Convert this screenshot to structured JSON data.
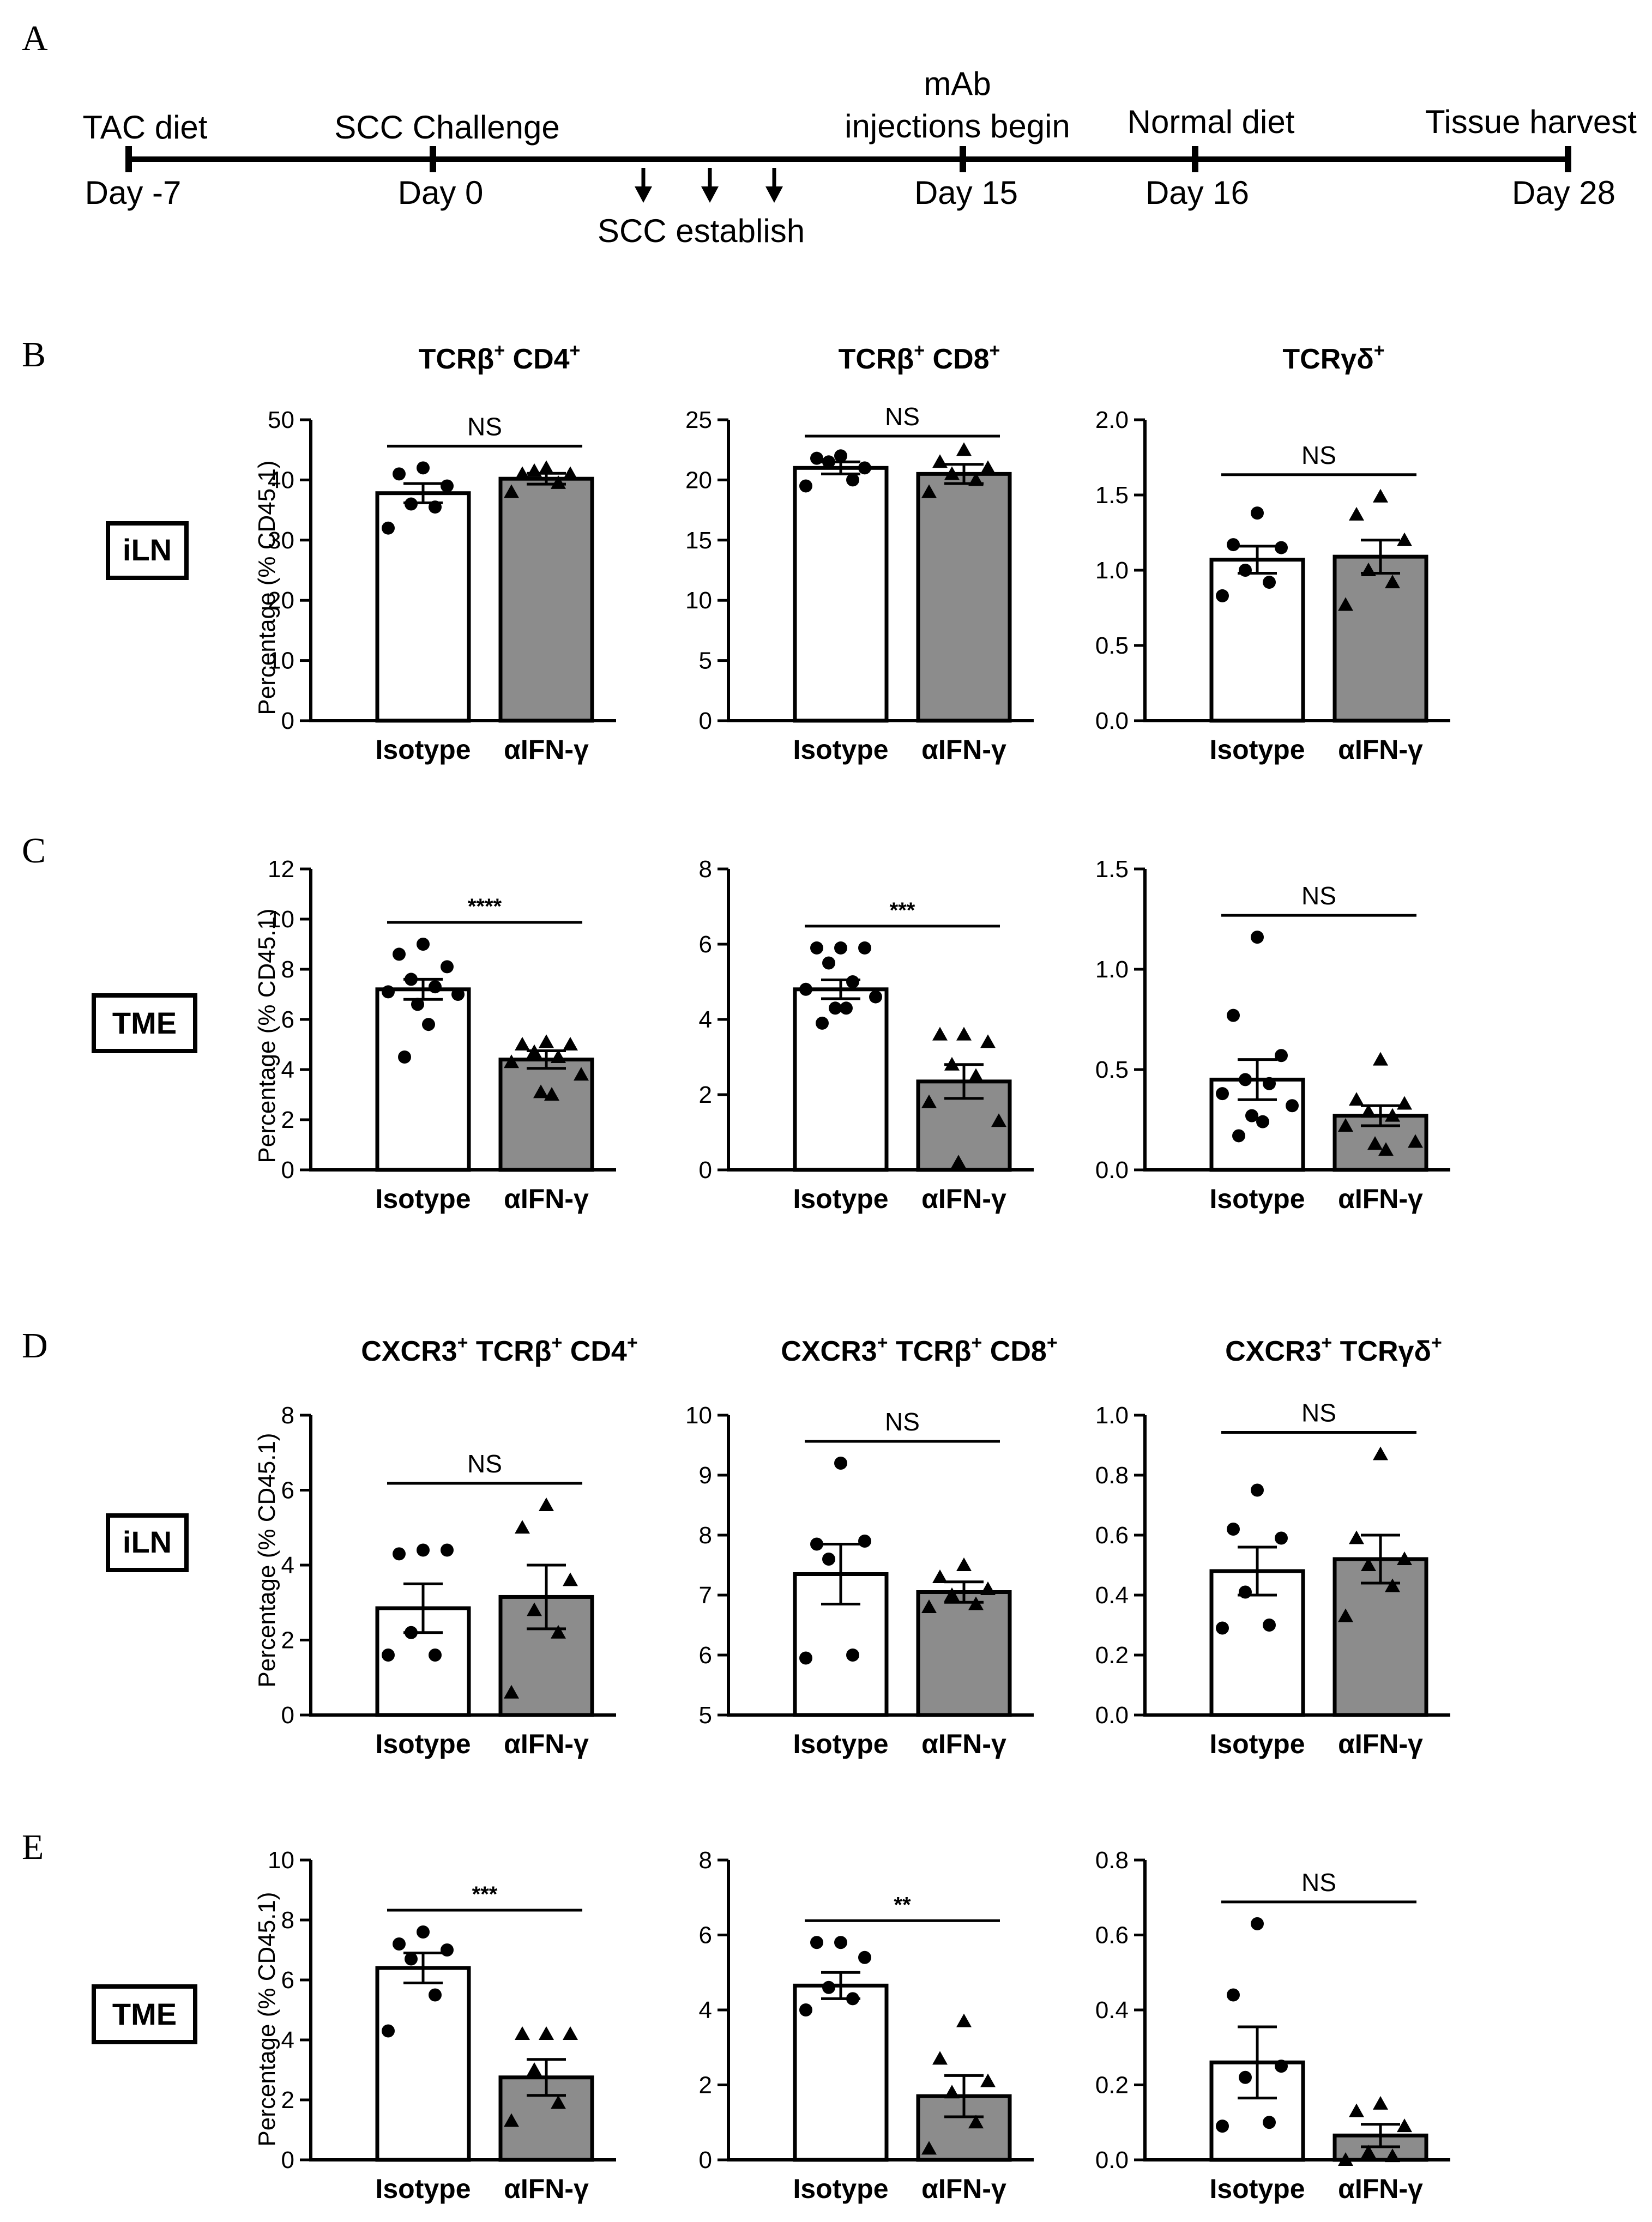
{
  "panel_letters": {
    "a": "A",
    "b": "B",
    "c": "C",
    "d": "D",
    "e": "E"
  },
  "timeline": {
    "events_above": [
      {
        "label": "TAC diet"
      },
      {
        "label": "SCC Challenge"
      },
      {
        "label": "mAb",
        "label2": "injections begin"
      },
      {
        "label": "Normal diet"
      },
      {
        "label": "Tissue harvest"
      }
    ],
    "days_below": [
      {
        "label": "Day -7"
      },
      {
        "label": "Day 0"
      },
      {
        "label": "Day 15"
      },
      {
        "label": "Day 16"
      },
      {
        "label": "Day 28"
      }
    ],
    "establish_label": "SCC establish"
  },
  "row_tags": {
    "iln": "iLN",
    "tme": "TME"
  },
  "y_axis_label": "Percentage (% CD45.1)",
  "groups": [
    "Isotype",
    "αIFN-γ"
  ],
  "column_titles_top": [
    {
      "main": "TCRβ",
      "sup1": "+",
      "mid": " CD4",
      "sup2": "+"
    },
    {
      "main": "TCRβ",
      "sup1": "+",
      "mid": " CD8",
      "sup2": "+"
    },
    {
      "main": "TCRγδ",
      "sup1": "+",
      "mid": "",
      "sup2": ""
    }
  ],
  "column_titles_bottom": [
    {
      "a": "CXCR3",
      "s1": "+",
      "b": " TCRβ",
      "s2": "+",
      "c": " CD4",
      "s3": "+"
    },
    {
      "a": "CXCR3",
      "s1": "+",
      "b": " TCRβ",
      "s2": "+",
      "c": " CD8",
      "s3": "+"
    },
    {
      "a": "CXCR3",
      "s1": "+",
      "b": " TCRγδ",
      "s2": "+",
      "c": "",
      "s3": ""
    }
  ],
  "chart_data": [
    {
      "row": "B",
      "tissue": "iLN",
      "population": "TCRβ+ CD4+",
      "type": "bar",
      "ylim": [
        0,
        50
      ],
      "ticks": [
        "0",
        "10",
        "20",
        "30",
        "40",
        "50"
      ],
      "sig": "NS",
      "series": [
        {
          "name": "Isotype",
          "mean": 37.8,
          "sem": 1.6,
          "points": [
            42.0,
            41.0,
            39.0,
            36.0,
            35.5,
            32.0
          ]
        },
        {
          "name": "αIFN-γ",
          "mean": 40.2,
          "sem": 0.9,
          "points": [
            42.0,
            41.0,
            41.0,
            41.5,
            39.5,
            38.0
          ]
        }
      ]
    },
    {
      "row": "B",
      "tissue": "iLN",
      "population": "TCRβ+ CD8+",
      "type": "bar",
      "ylim": [
        0,
        25
      ],
      "ticks": [
        "0",
        "5",
        "10",
        "15",
        "20",
        "25"
      ],
      "sig": "NS",
      "series": [
        {
          "name": "Isotype",
          "mean": 21.0,
          "sem": 0.5,
          "points": [
            22.0,
            21.8,
            21.0,
            21.5,
            20.0,
            19.5
          ]
        },
        {
          "name": "αIFN-γ",
          "mean": 20.5,
          "sem": 0.8,
          "points": [
            22.5,
            21.5,
            21.0,
            20.5,
            20.0,
            19.0
          ]
        }
      ]
    },
    {
      "row": "B",
      "tissue": "iLN",
      "population": "TCRγδ+",
      "type": "bar",
      "ylim": [
        0,
        2.0
      ],
      "ticks": [
        "0.0",
        "0.5",
        "1.0",
        "1.5",
        "2.0"
      ],
      "sig": "NS",
      "series": [
        {
          "name": "Isotype",
          "mean": 1.07,
          "sem": 0.09,
          "points": [
            1.38,
            1.17,
            1.15,
            1.0,
            0.92,
            0.83
          ]
        },
        {
          "name": "αIFN-γ",
          "mean": 1.09,
          "sem": 0.11,
          "points": [
            1.49,
            1.37,
            1.2,
            1.0,
            0.92,
            0.77
          ]
        }
      ]
    },
    {
      "row": "C",
      "tissue": "TME",
      "population": "TCRβ+ CD4+",
      "type": "bar",
      "ylim": [
        0,
        12
      ],
      "ticks": [
        "0",
        "2",
        "4",
        "6",
        "8",
        "10",
        "12"
      ],
      "sig": "****",
      "series": [
        {
          "name": "Isotype",
          "mean": 7.2,
          "sem": 0.4,
          "points": [
            9.0,
            8.6,
            8.1,
            7.6,
            7.3,
            7.1,
            7.0,
            6.6,
            5.8,
            4.5
          ]
        },
        {
          "name": "αIFN-γ",
          "mean": 4.4,
          "sem": 0.35,
          "points": [
            5.1,
            5.0,
            5.0,
            4.7,
            4.5,
            4.3,
            3.8,
            3.1,
            3.0
          ]
        }
      ]
    },
    {
      "row": "C",
      "tissue": "TME",
      "population": "TCRβ+ CD8+",
      "type": "bar",
      "ylim": [
        0,
        8
      ],
      "ticks": [
        "0",
        "2",
        "4",
        "6",
        "8"
      ],
      "sig": "***",
      "series": [
        {
          "name": "Isotype",
          "mean": 4.8,
          "sem": 0.25,
          "points": [
            5.9,
            5.9,
            5.9,
            5.5,
            5.0,
            4.8,
            4.6,
            4.3,
            4.3,
            3.9
          ]
        },
        {
          "name": "αIFN-γ",
          "mean": 2.35,
          "sem": 0.45,
          "points": [
            3.6,
            3.6,
            3.4,
            2.8,
            2.5,
            1.8,
            1.3,
            0.2
          ]
        }
      ]
    },
    {
      "row": "C",
      "tissue": "TME",
      "population": "TCRγδ+",
      "type": "bar",
      "ylim": [
        0,
        1.5
      ],
      "ticks": [
        "0.0",
        "0.5",
        "1.0",
        "1.5"
      ],
      "sig": "NS",
      "series": [
        {
          "name": "Isotype",
          "mean": 0.45,
          "sem": 0.1,
          "points": [
            1.16,
            0.77,
            0.57,
            0.45,
            0.43,
            0.38,
            0.32,
            0.27,
            0.24,
            0.17
          ]
        },
        {
          "name": "αIFN-γ",
          "mean": 0.27,
          "sem": 0.05,
          "points": [
            0.55,
            0.35,
            0.33,
            0.29,
            0.27,
            0.22,
            0.14,
            0.13,
            0.1
          ]
        }
      ]
    },
    {
      "row": "D",
      "tissue": "iLN",
      "population": "CXCR3+ TCRβ+ CD4+",
      "type": "bar",
      "ylim": [
        0,
        8
      ],
      "ticks": [
        "0",
        "2",
        "4",
        "6",
        "8"
      ],
      "sig": "NS",
      "series": [
        {
          "name": "Isotype",
          "mean": 2.85,
          "sem": 0.65,
          "points": [
            4.4,
            4.3,
            4.4,
            2.2,
            1.6,
            1.6
          ]
        },
        {
          "name": "αIFN-γ",
          "mean": 3.15,
          "sem": 0.85,
          "points": [
            5.6,
            5.0,
            3.6,
            2.8,
            2.2,
            0.6
          ]
        }
      ]
    },
    {
      "row": "D",
      "tissue": "iLN",
      "population": "CXCR3+ TCRβ+ CD8+",
      "type": "bar",
      "ylim": [
        5,
        10
      ],
      "ticks": [
        "5",
        "6",
        "7",
        "8",
        "9",
        "10"
      ],
      "sig": "NS",
      "series": [
        {
          "name": "Isotype",
          "mean": 7.35,
          "sem": 0.5,
          "points": [
            9.2,
            7.85,
            7.9,
            7.6,
            6.0,
            5.95
          ]
        },
        {
          "name": "αIFN-γ",
          "mean": 7.05,
          "sem": 0.17,
          "points": [
            7.5,
            7.3,
            7.1,
            7.0,
            6.85,
            6.8
          ]
        }
      ]
    },
    {
      "row": "D",
      "tissue": "iLN",
      "population": "CXCR3+ TCRγδ+",
      "type": "bar",
      "ylim": [
        0,
        1.0
      ],
      "ticks": [
        "0.0",
        "0.2",
        "0.4",
        "0.6",
        "0.8",
        "1.0"
      ],
      "sig": "NS",
      "series": [
        {
          "name": "Isotype",
          "mean": 0.48,
          "sem": 0.08,
          "points": [
            0.75,
            0.62,
            0.59,
            0.41,
            0.3,
            0.29
          ]
        },
        {
          "name": "αIFN-γ",
          "mean": 0.52,
          "sem": 0.08,
          "points": [
            0.87,
            0.59,
            0.52,
            0.5,
            0.43,
            0.33
          ]
        }
      ]
    },
    {
      "row": "E",
      "tissue": "TME",
      "population": "CXCR3+ TCRβ+ CD4+",
      "type": "bar",
      "ylim": [
        0,
        10
      ],
      "ticks": [
        "0",
        "2",
        "4",
        "6",
        "8",
        "10"
      ],
      "sig": "***",
      "series": [
        {
          "name": "Isotype",
          "mean": 6.4,
          "sem": 0.5,
          "points": [
            7.6,
            7.2,
            7.0,
            6.7,
            5.5,
            4.3
          ]
        },
        {
          "name": "αIFN-γ",
          "mean": 2.75,
          "sem": 0.6,
          "points": [
            4.2,
            4.2,
            4.2,
            3.0,
            1.9,
            1.3
          ]
        }
      ]
    },
    {
      "row": "E",
      "tissue": "TME",
      "population": "CXCR3+ TCRβ+ CD8+",
      "type": "bar",
      "ylim": [
        0,
        8
      ],
      "ticks": [
        "0",
        "2",
        "4",
        "6",
        "8"
      ],
      "sig": "**",
      "series": [
        {
          "name": "Isotype",
          "mean": 4.65,
          "sem": 0.35,
          "points": [
            5.8,
            5.8,
            5.4,
            4.6,
            4.3,
            4.0
          ]
        },
        {
          "name": "αIFN-γ",
          "mean": 1.7,
          "sem": 0.55,
          "points": [
            3.7,
            2.7,
            2.1,
            1.8,
            1.0,
            0.3
          ]
        }
      ]
    },
    {
      "row": "E",
      "tissue": "TME",
      "population": "CXCR3+ TCRγδ+",
      "type": "bar",
      "ylim": [
        0,
        0.8
      ],
      "ticks": [
        "0.0",
        "0.2",
        "0.4",
        "0.6",
        "0.8"
      ],
      "sig": "NS",
      "series": [
        {
          "name": "Isotype",
          "mean": 0.26,
          "sem": 0.095,
          "points": [
            0.63,
            0.44,
            0.25,
            0.22,
            0.1,
            0.09
          ]
        },
        {
          "name": "αIFN-γ",
          "mean": 0.065,
          "sem": 0.03,
          "points": [
            0.15,
            0.13,
            0.09,
            0.02,
            0.01,
            0.0
          ]
        }
      ]
    }
  ]
}
